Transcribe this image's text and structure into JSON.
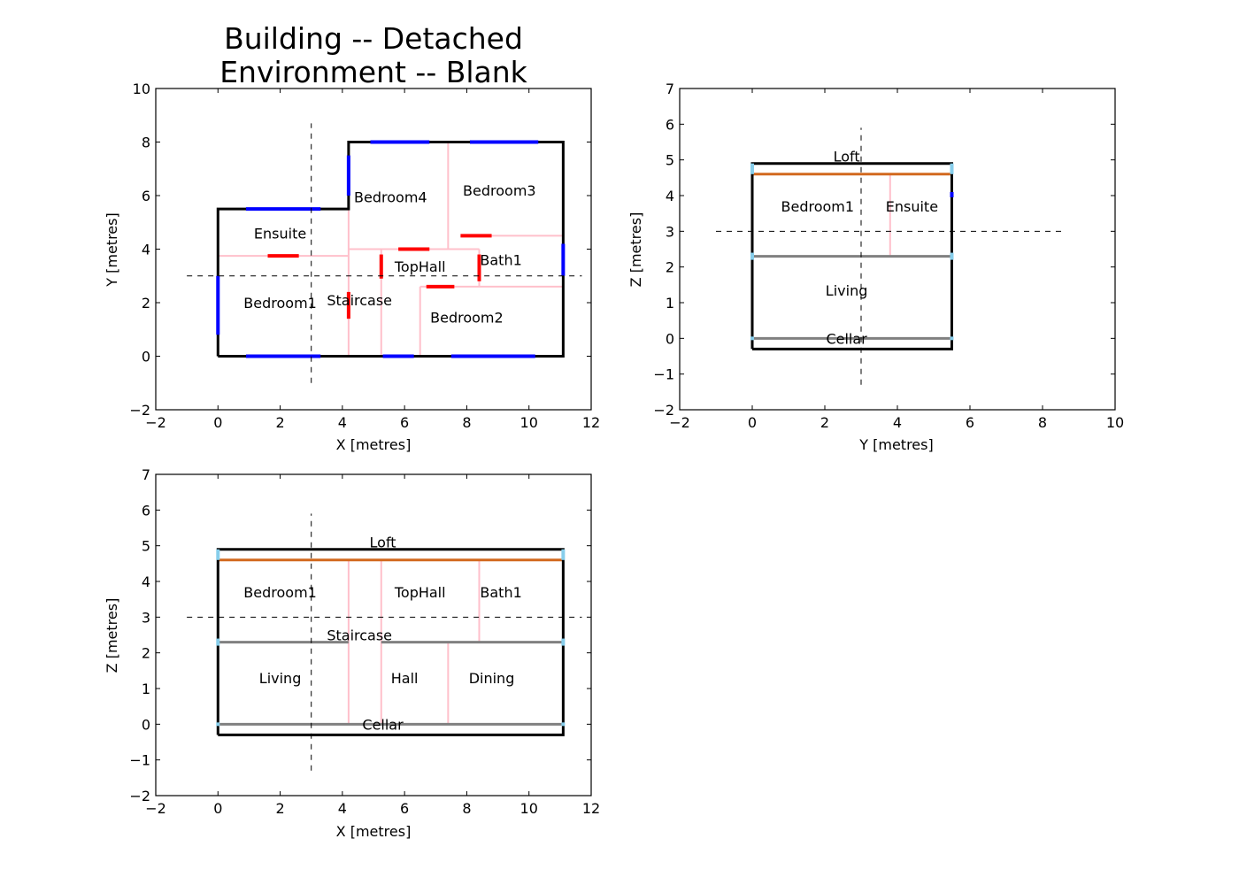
{
  "title_lines": [
    "Building -- Detached",
    "Environment -- Blank"
  ],
  "colors": {
    "outline": "#000000",
    "window": "#0000ff",
    "door": "#ff0000",
    "internal_wall": "#ffc0cb",
    "floor": "#808080",
    "roof": "#d2691e",
    "wall_edge": "#87ceeb",
    "crosshair": "#000000"
  },
  "panels": {
    "plan": {
      "xlabel": "X [metres]",
      "ylabel": "Y [metres]",
      "xlim": [
        -2,
        12
      ],
      "ylim": [
        -2,
        10
      ],
      "xticks": [
        "−2",
        "0",
        "2",
        "4",
        "6",
        "8",
        "10",
        "12"
      ],
      "yticks": [
        "−2",
        "0",
        "2",
        "4",
        "6",
        "8",
        "10"
      ],
      "rooms": [
        {
          "name": "Ensuite",
          "x": 2.0,
          "y": 4.6
        },
        {
          "name": "Bedroom4",
          "x": 5.55,
          "y": 5.95
        },
        {
          "name": "Bedroom3",
          "x": 9.05,
          "y": 6.2
        },
        {
          "name": "TopHall",
          "x": 6.5,
          "y": 3.35
        },
        {
          "name": "Bath1",
          "x": 9.1,
          "y": 3.6
        },
        {
          "name": "Bedroom1",
          "x": 2.0,
          "y": 2.0
        },
        {
          "name": "Staircase",
          "x": 4.55,
          "y": 2.1
        },
        {
          "name": "Bedroom2",
          "x": 8.0,
          "y": 1.45
        }
      ]
    },
    "side": {
      "xlabel": "Y [metres]",
      "ylabel": "Z [metres]",
      "xlim": [
        -2,
        10
      ],
      "ylim": [
        -2,
        7
      ],
      "xticks": [
        "−2",
        "0",
        "2",
        "4",
        "6",
        "8",
        "10"
      ],
      "yticks": [
        "−2",
        "−1",
        "0",
        "1",
        "2",
        "3",
        "4",
        "5",
        "6",
        "7"
      ],
      "rooms": [
        {
          "name": "Loft",
          "x": 2.6,
          "y": 5.1
        },
        {
          "name": "Bedroom1",
          "x": 1.8,
          "y": 3.7
        },
        {
          "name": "Ensuite",
          "x": 4.4,
          "y": 3.7
        },
        {
          "name": "Living",
          "x": 2.6,
          "y": 1.35
        },
        {
          "name": "Cellar",
          "x": 2.6,
          "y": 0.0
        }
      ]
    },
    "front": {
      "xlabel": "X [metres]",
      "ylabel": "Z [metres]",
      "xlim": [
        -2,
        12
      ],
      "ylim": [
        -2,
        7
      ],
      "xticks": [
        "−2",
        "0",
        "2",
        "4",
        "6",
        "8",
        "10",
        "12"
      ],
      "yticks": [
        "−2",
        "−1",
        "0",
        "1",
        "2",
        "3",
        "4",
        "5",
        "6",
        "7"
      ],
      "rooms": [
        {
          "name": "Loft",
          "x": 5.3,
          "y": 5.1
        },
        {
          "name": "Bedroom1",
          "x": 2.0,
          "y": 3.7
        },
        {
          "name": "TopHall",
          "x": 6.5,
          "y": 3.7
        },
        {
          "name": "Bath1",
          "x": 9.1,
          "y": 3.7
        },
        {
          "name": "Staircase",
          "x": 4.55,
          "y": 2.5
        },
        {
          "name": "Living",
          "x": 2.0,
          "y": 1.3
        },
        {
          "name": "Hall",
          "x": 6.0,
          "y": 1.3
        },
        {
          "name": "Dining",
          "x": 8.8,
          "y": 1.3
        },
        {
          "name": "Cellar",
          "x": 5.3,
          "y": 0.0
        }
      ]
    }
  }
}
